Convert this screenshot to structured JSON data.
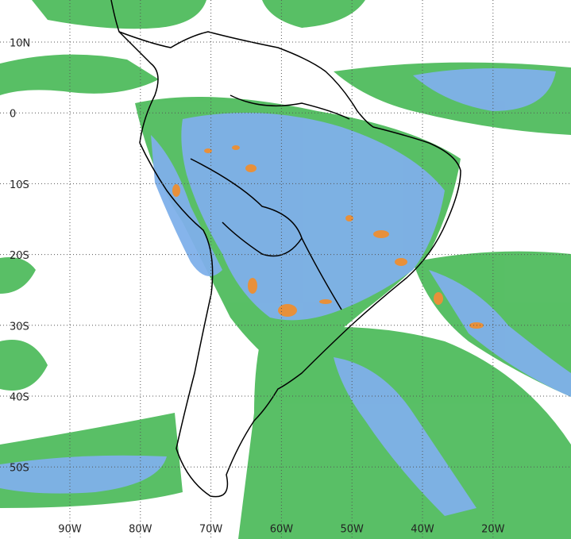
{
  "map": {
    "lat_labels": [
      "10N",
      "0",
      "10S",
      "20S",
      "30S",
      "40S",
      "50S"
    ],
    "lon_labels": [
      "90W",
      "80W",
      "70W",
      "60W",
      "50W",
      "40W",
      "20W"
    ]
  }
}
